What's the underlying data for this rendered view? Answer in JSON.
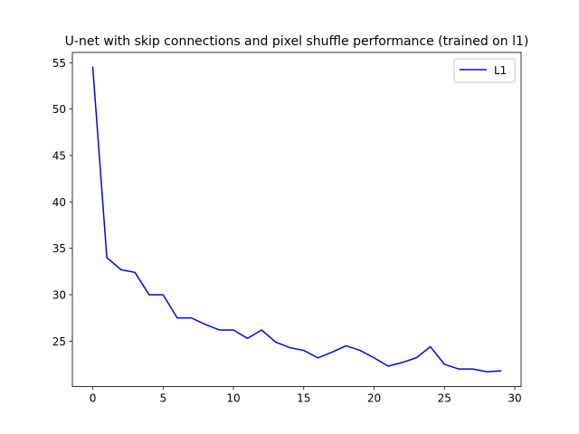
{
  "chart_data": {
    "type": "line",
    "title": "U-net with skip connections and pixel shuffle performance (trained on l1)",
    "xlabel": "",
    "ylabel": "",
    "xlim": [
      -1.45,
      30.45
    ],
    "ylim": [
      20.1,
      56.1
    ],
    "xticks": [
      0,
      5,
      10,
      15,
      20,
      25,
      30
    ],
    "yticks": [
      25,
      30,
      35,
      40,
      45,
      50,
      55
    ],
    "grid": false,
    "legend_position": "top-right",
    "series": [
      {
        "name": "L1",
        "color": "#0000ff",
        "x": [
          0,
          1,
          2,
          3,
          4,
          5,
          6,
          7,
          8,
          9,
          10,
          11,
          12,
          13,
          14,
          15,
          16,
          17,
          18,
          19,
          20,
          21,
          22,
          23,
          24,
          25,
          26,
          27,
          28,
          29
        ],
        "y": [
          54.5,
          34.0,
          32.7,
          32.4,
          30.0,
          30.0,
          27.5,
          27.5,
          26.8,
          26.2,
          26.2,
          25.3,
          26.2,
          24.9,
          24.3,
          24.0,
          23.2,
          23.8,
          24.5,
          24.0,
          23.2,
          22.3,
          22.7,
          23.2,
          24.4,
          22.5,
          22.0,
          22.0,
          21.7,
          21.8
        ]
      }
    ]
  }
}
